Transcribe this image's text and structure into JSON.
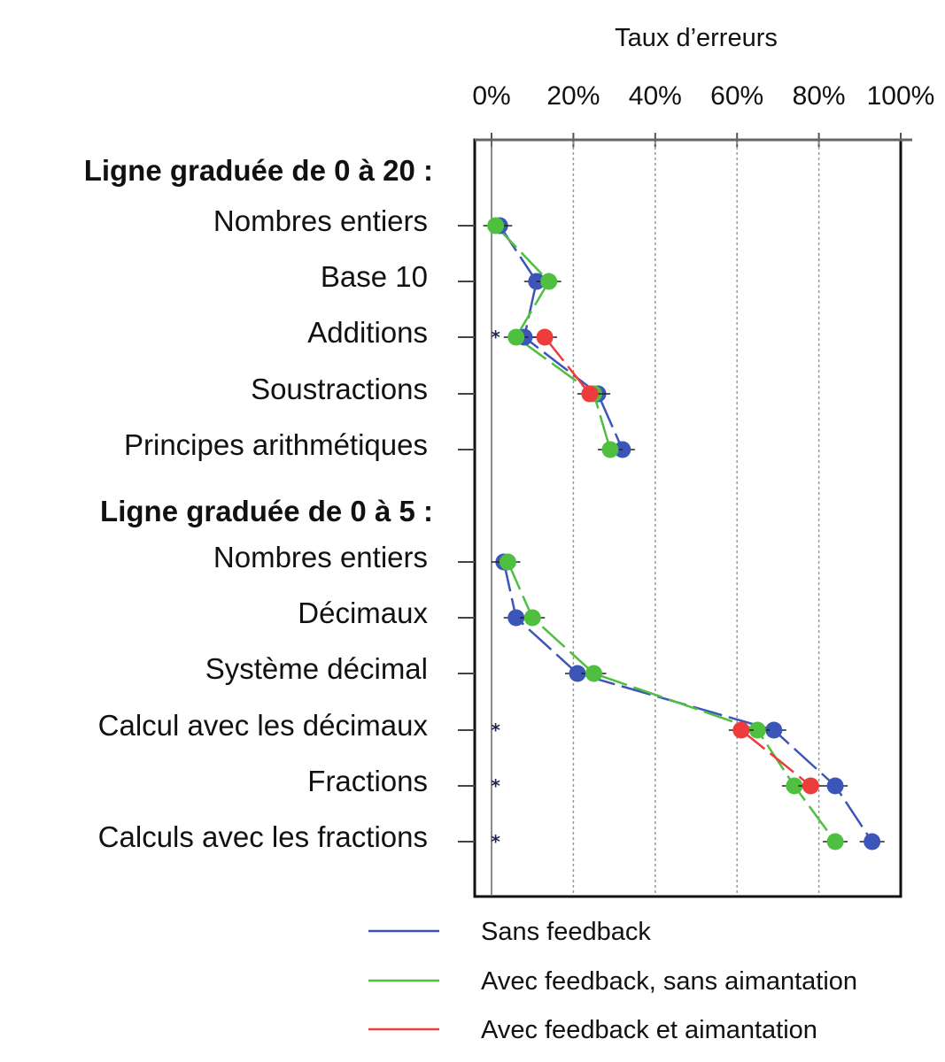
{
  "chart_data": {
    "type": "scatter",
    "title": "",
    "xlabel": "Taux d’erreurs",
    "ylabel": "",
    "xlim": [
      0,
      100
    ],
    "x_ticks": [
      "0%",
      "20%",
      "40%",
      "60%",
      "80%",
      "100%"
    ],
    "x_tick_values": [
      0,
      20,
      40,
      60,
      80,
      100
    ],
    "x_axis_position": "top",
    "grid": "vertical dotted",
    "legend_position": "bottom",
    "groups": [
      {
        "label": "Ligne graduée de 0 à 20 :",
        "categories": [
          "Nombres entiers",
          "Base 10",
          "Additions",
          "Soustractions",
          "Principes arithmétiques"
        ]
      },
      {
        "label": "Ligne graduée de 0 à 5 :",
        "categories": [
          "Nombres entiers",
          "Décimaux",
          "Système décimal",
          "Calcul avec les décimaux",
          "Fractions",
          "Calculs avec les fractions"
        ]
      }
    ],
    "series": [
      {
        "name": "Sans feedback",
        "color": "#3b55b8",
        "values": [
          [
            2,
            11,
            8,
            26,
            32
          ],
          [
            3,
            6,
            21,
            69,
            84,
            93
          ]
        ]
      },
      {
        "name": "Avec feedback, sans aimantation",
        "color": "#4fbf3f",
        "values": [
          [
            1,
            14,
            6,
            25,
            29
          ],
          [
            4,
            10,
            25,
            65,
            74,
            84
          ]
        ]
      },
      {
        "name": "Avec feedback et aimantation",
        "color": "#ee3b3b",
        "values": [
          [
            null,
            null,
            13,
            24,
            null
          ],
          [
            null,
            null,
            null,
            61,
            78,
            null
          ]
        ]
      }
    ],
    "markers": {
      "star_at_near_zero": [
        [
          false,
          false,
          true,
          false,
          false
        ],
        [
          false,
          false,
          false,
          true,
          true,
          true
        ]
      ],
      "star_value": 1
    }
  }
}
